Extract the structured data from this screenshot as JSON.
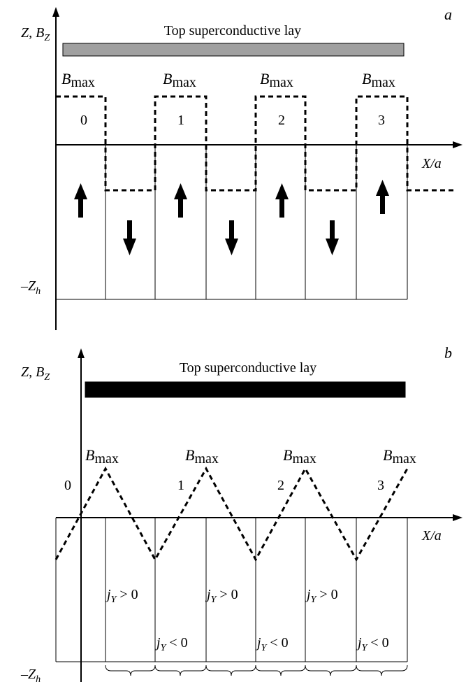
{
  "panel_a": {
    "tag": "a",
    "top_layer_label": "Top superconductive lay",
    "top_layer_fill": "#a0a0a0",
    "axis_label": {
      "z": "Z, B",
      "z_sub": "Z",
      "x": "X/a",
      "bottom": "–Z",
      "bottom_sub": "h"
    },
    "field_peak_label": {
      "main": "B",
      "sub": "max"
    },
    "cell_numbers": [
      "0",
      "1",
      "2",
      "3"
    ],
    "magnetization_directions": [
      "up",
      "down",
      "up",
      "down",
      "up",
      "down",
      "up"
    ]
  },
  "panel_b": {
    "tag": "b",
    "top_layer_label": "Top superconductive lay",
    "top_layer_fill": "#000000",
    "axis_label": {
      "z": "Z, B",
      "z_sub": "Z",
      "x": "X/a",
      "bottom": "–Z",
      "bottom_sub": "h"
    },
    "field_peak_label": {
      "main": "B",
      "sub": "max"
    },
    "cell_numbers": [
      "0",
      "1",
      "2",
      "3"
    ],
    "current_labels": [
      {
        "main": "j",
        "sub": "Y",
        "rel": " > 0"
      },
      {
        "main": "j",
        "sub": "Y",
        "rel": " < 0"
      }
    ]
  }
}
